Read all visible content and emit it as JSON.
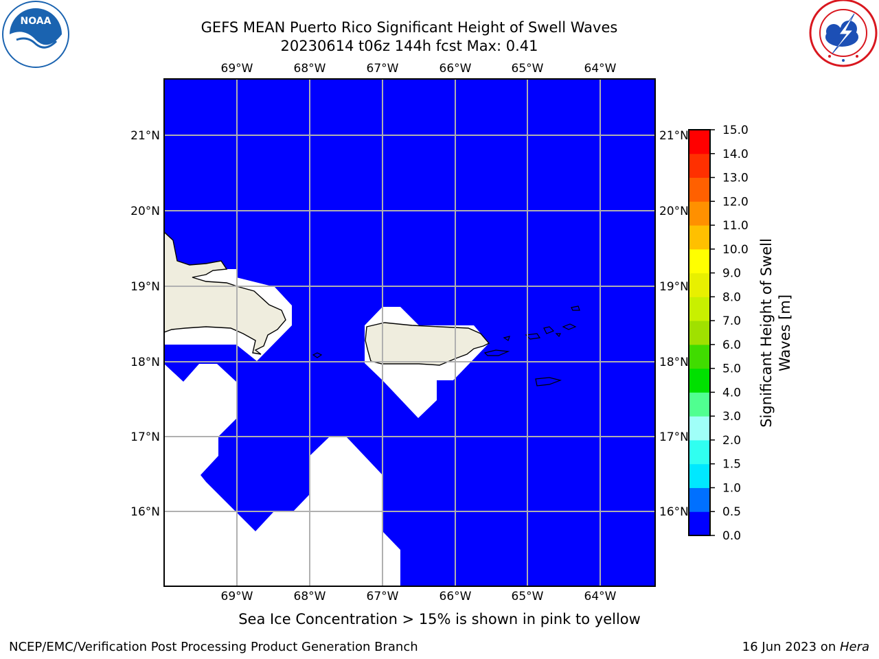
{
  "header": {
    "title_line1": "GEFS MEAN Puerto Rico Significant Height of Swell Waves",
    "title_line2": "20230614 t06z 144h fcst   Max: 0.41"
  },
  "logos": {
    "left": {
      "name": "NOAA",
      "text": "NOAA",
      "ring_text": "NATIONAL OCEANIC AND ATMOSPHERIC ADMINISTRATION · U.S. DEPARTMENT OF COMMERCE",
      "color": "#1a63b0"
    },
    "right": {
      "name": "National Weather Service",
      "ring_text": "NATIONAL WEATHER SERVICE",
      "color": "#d9171f"
    }
  },
  "map": {
    "lon_labels": [
      "69°W",
      "68°W",
      "67°W",
      "66°W",
      "65°W",
      "64°W"
    ],
    "lat_labels": [
      "21°N",
      "20°N",
      "19°N",
      "18°N",
      "17°N",
      "16°N"
    ],
    "ocean_color": "#0000ff",
    "land_color": "#efedde",
    "nodata_color": "#ffffff"
  },
  "colorbar": {
    "label": "Significant Height of Swell Waves [m]",
    "label_line1": "Significant Height of Swell",
    "label_line2": "Waves [m]",
    "ticks": [
      "0.0",
      "0.5",
      "1.0",
      "1.5",
      "2.0",
      "3.0",
      "4.0",
      "5.0",
      "6.0",
      "7.0",
      "8.0",
      "9.0",
      "10.0",
      "11.0",
      "12.0",
      "13.0",
      "14.0",
      "15.0"
    ],
    "colors": [
      "#0000ff",
      "#0070ff",
      "#00e8ff",
      "#30fff0",
      "#a0fff8",
      "#50ff90",
      "#00e000",
      "#40dc00",
      "#a0e000",
      "#c8f000",
      "#e8f000",
      "#ffff00",
      "#ffc000",
      "#ff9000",
      "#ff6000",
      "#ff3000",
      "#ff0000"
    ]
  },
  "footnote": "Sea Ice Concentration > 15% is shown in pink to yellow",
  "footer": {
    "left": "NCEP/EMC/Verification Post Processing Product Generation Branch",
    "right_prefix": "16 Jun 2023 on ",
    "right_machine": "Hera"
  }
}
